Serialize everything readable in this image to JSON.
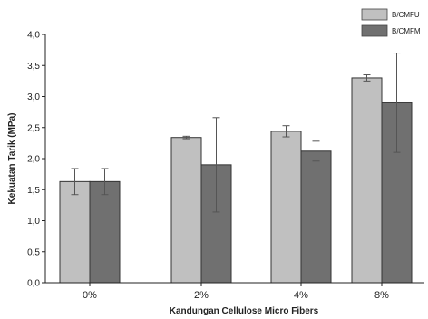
{
  "chart_data": {
    "type": "bar",
    "categories": [
      "0%",
      "2%",
      "4%",
      "8%"
    ],
    "series": [
      {
        "name": "B/CMFU",
        "color": "#c0c0c0",
        "values": [
          1.63,
          2.34,
          2.44,
          3.3
        ],
        "error": [
          0.21,
          0.02,
          0.09,
          0.05
        ]
      },
      {
        "name": "B/CMFM",
        "color": "#707070",
        "values": [
          1.63,
          1.9,
          2.12,
          2.9
        ],
        "error": [
          0.21,
          0.76,
          0.16,
          0.8
        ]
      }
    ],
    "xlabel": "Kandungan Cellulose Micro Fibers",
    "ylabel": "Kekuatan Tarik (MPa)",
    "ylim": [
      0,
      4.0
    ],
    "yticks": [
      "0,0",
      "0,5",
      "1,0",
      "1,5",
      "2,0",
      "2,5",
      "3,0",
      "3,5",
      "4,0"
    ],
    "grid": false,
    "legend_position": "top-right"
  }
}
